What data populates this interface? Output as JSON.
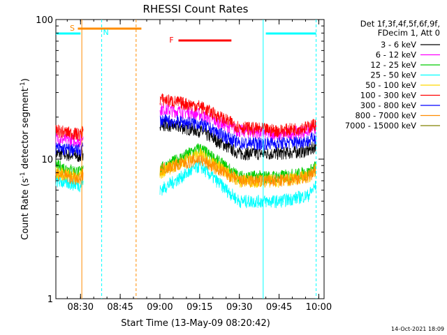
{
  "chart_data": {
    "type": "line",
    "title": "RHESSI Count Rates",
    "xlabel": "Start Time (13-May-09 08:20:42)",
    "ylabel_main": "Count Rate (s",
    "ylabel_sup1": "-1",
    "ylabel_mid": " detector segment",
    "ylabel_sup2": "-1",
    "ylabel_end": ")",
    "y_scale": "log",
    "ylim": [
      1,
      100
    ],
    "xlim": [
      "08:20:42",
      "10:02:00"
    ],
    "x_ticks": [
      "08:30",
      "08:45",
      "09:00",
      "09:15",
      "09:30",
      "09:45",
      "10:00"
    ],
    "y_ticks": [
      "1",
      "10",
      "100"
    ],
    "legend_header": [
      "Det 1f,3f,4f,5f,6f,9f,",
      "FDecim 1, Att 0"
    ],
    "legend_position": "right",
    "timestamp": "14-Oct-2021 18:09",
    "series": [
      {
        "name": "3 - 6 keV",
        "color": "#000000",
        "x": [
          "08:20:42",
          "08:30",
          "08:31",
          "08:33",
          "08:45",
          "09:00",
          "09:15",
          "09:30",
          "09:45",
          "09:56",
          "09:59"
        ],
        "y": [
          11,
          10.5,
          11,
          null,
          null,
          18,
          16,
          11,
          11,
          11.5,
          12.5
        ]
      },
      {
        "name": "6 - 12 keV",
        "color": "#ff00ff",
        "x": [
          "08:20:42",
          "08:30",
          "08:31",
          "08:33",
          "08:45",
          "09:00",
          "09:15",
          "09:30",
          "09:45",
          "09:56",
          "09:59"
        ],
        "y": [
          14,
          13.5,
          14.5,
          null,
          null,
          23,
          21,
          16,
          15,
          16,
          17
        ]
      },
      {
        "name": "12 - 25 keV",
        "color": "#00cc00",
        "x": [
          "08:20:42",
          "08:30",
          "08:31",
          "08:33",
          "08:45",
          "09:00",
          "09:15",
          "09:30",
          "09:45",
          "09:56",
          "09:59"
        ],
        "y": [
          9,
          8,
          9,
          null,
          null,
          8.5,
          12,
          7.5,
          7.5,
          8,
          9
        ]
      },
      {
        "name": "25 - 50 keV",
        "color": "#00ffff",
        "x": [
          "08:20:42",
          "08:30",
          "08:31",
          "08:33",
          "08:45",
          "09:00",
          "09:15",
          "09:30",
          "09:45",
          "09:56",
          "09:59"
        ],
        "y": [
          7,
          6.5,
          7,
          null,
          null,
          6,
          9,
          5,
          5,
          5.5,
          6.5
        ]
      },
      {
        "name": "50 - 100 keV",
        "color": "#ffd700",
        "x": [
          "08:20:42",
          "08:30",
          "08:31",
          "08:33",
          "08:45",
          "09:00",
          "09:15",
          "09:30",
          "09:45",
          "09:56",
          "09:59"
        ],
        "y": [
          8,
          7.5,
          8,
          null,
          null,
          8,
          11,
          7,
          7,
          7.5,
          8.5
        ]
      },
      {
        "name": "100 - 300 keV",
        "color": "#ff0000",
        "x": [
          "08:20:42",
          "08:30",
          "08:31",
          "08:33",
          "08:45",
          "09:00",
          "09:15",
          "09:30",
          "09:45",
          "09:56",
          "09:59"
        ],
        "y": [
          16,
          15,
          16.5,
          null,
          null,
          27,
          24,
          17,
          16,
          17,
          18
        ]
      },
      {
        "name": "300 - 800 keV",
        "color": "#0000ff",
        "x": [
          "08:20:42",
          "08:30",
          "08:31",
          "08:33",
          "08:45",
          "09:00",
          "09:15",
          "09:30",
          "09:45",
          "09:56",
          "09:59"
        ],
        "y": [
          12,
          11.5,
          12.5,
          null,
          null,
          19,
          18,
          13,
          13,
          13.5,
          14.5
        ]
      },
      {
        "name": "800 - 7000 keV",
        "color": "#ff8c00",
        "x": [
          "08:20:42",
          "08:30",
          "08:31",
          "08:33",
          "08:45",
          "09:00",
          "09:15",
          "09:30",
          "09:45",
          "09:56",
          "09:59"
        ],
        "y": [
          8,
          7,
          8,
          null,
          null,
          8.5,
          10,
          7,
          7,
          7.5,
          8.5
        ]
      },
      {
        "name": "7000 - 15000 keV",
        "color": "#808000",
        "x": [
          "08:20:42",
          "08:30",
          "08:31",
          "08:33",
          "08:45",
          "09:00",
          "09:15",
          "09:30",
          "09:45",
          "09:56",
          "09:59"
        ],
        "y": [
          null,
          null,
          null,
          null,
          null,
          null,
          null,
          null,
          null,
          null,
          null
        ]
      }
    ],
    "flag_bars": [
      {
        "label": "S",
        "color": "#ff8c00",
        "x_start": "08:29",
        "x_end": "08:53"
      },
      {
        "label": "N",
        "color": "#00ffff",
        "x_start": "08:20:42",
        "x_end": "08:30"
      },
      {
        "label": "F",
        "color": "#ff0000",
        "x_start": "09:07",
        "x_end": "09:27"
      },
      {
        "label": "",
        "color": "#00ffff",
        "x_start": "09:40",
        "x_end": "09:59"
      }
    ],
    "vertical_markers": [
      {
        "x": "08:30:30",
        "color": "#ff8c00",
        "style": "solid"
      },
      {
        "x": "08:38",
        "color": "#00ffff",
        "style": "dashed"
      },
      {
        "x": "08:51",
        "color": "#ff8c00",
        "style": "dashed"
      },
      {
        "x": "09:39",
        "color": "#00ffff",
        "style": "solid"
      },
      {
        "x": "09:59",
        "color": "#00ffff",
        "style": "dashed"
      }
    ]
  }
}
